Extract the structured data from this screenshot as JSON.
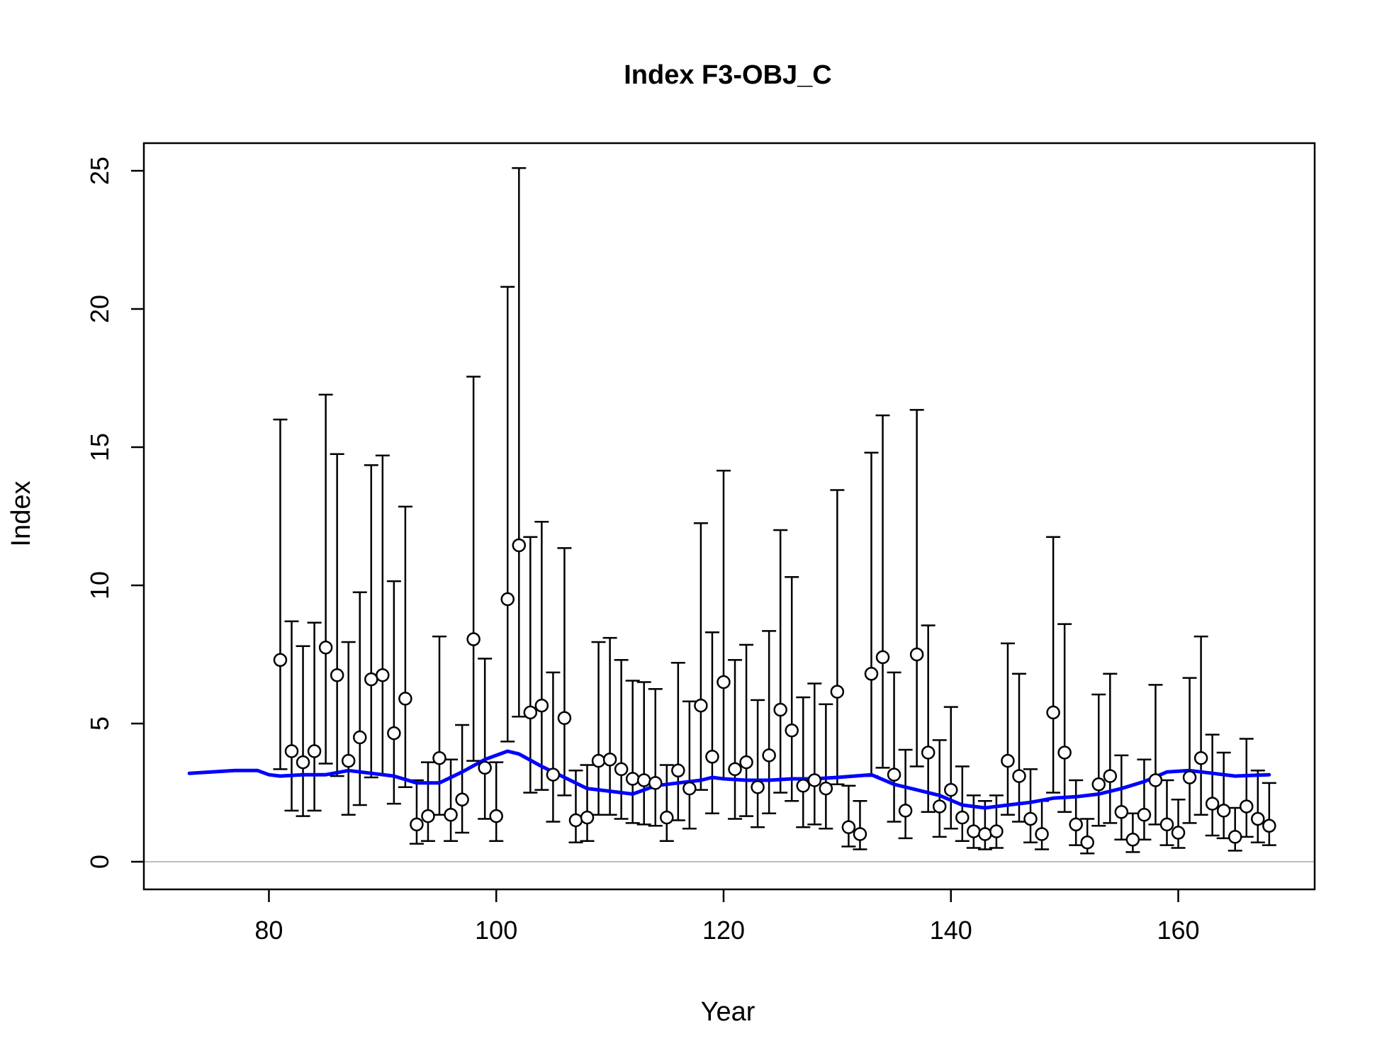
{
  "chart_data": {
    "type": "scatter",
    "title": "Index F3-OBJ_C",
    "xlabel": "Year",
    "ylabel": "Index",
    "xlim": [
      69,
      172
    ],
    "ylim": [
      -1,
      26
    ],
    "xticks": [
      80,
      100,
      120,
      140,
      160
    ],
    "yticks": [
      0,
      5,
      10,
      15,
      20,
      25
    ],
    "grid": false,
    "legend": "none",
    "zero_line": 0,
    "colors": {
      "points": "#000000",
      "point_fill": "#ffffff",
      "errorbars": "#000000",
      "smoother": "#0000ff",
      "zero_line": "#bebebe"
    },
    "observations": {
      "x": [
        81,
        82,
        83,
        84,
        85,
        86,
        87,
        88,
        89,
        90,
        91,
        92,
        93,
        94,
        95,
        96,
        97,
        98,
        99,
        100,
        101,
        102,
        103,
        104,
        105,
        106,
        107,
        108,
        109,
        110,
        111,
        112,
        113,
        114,
        115,
        116,
        117,
        118,
        119,
        120,
        121,
        122,
        123,
        124,
        125,
        126,
        127,
        128,
        129,
        130,
        131,
        132,
        133,
        134,
        135,
        136,
        137,
        138,
        139,
        140,
        141,
        142,
        143,
        144,
        145,
        146,
        147,
        148,
        149,
        150,
        151,
        152,
        153,
        154,
        155,
        156,
        157,
        158,
        159,
        160,
        161,
        162,
        163,
        164,
        165,
        166,
        167,
        168
      ],
      "y": [
        7.3,
        4.0,
        3.6,
        4.0,
        7.75,
        6.75,
        3.65,
        4.5,
        6.6,
        6.75,
        4.65,
        5.9,
        1.35,
        1.65,
        3.75,
        1.7,
        2.25,
        8.05,
        3.4,
        1.65,
        9.5,
        11.45,
        5.4,
        5.65,
        3.15,
        5.2,
        1.5,
        1.6,
        3.65,
        3.7,
        3.35,
        3.0,
        2.95,
        2.85,
        1.6,
        3.3,
        2.65,
        5.65,
        3.8,
        6.5,
        3.35,
        3.6,
        2.7,
        3.85,
        5.5,
        4.75,
        2.75,
        2.95,
        2.65,
        6.15,
        1.25,
        1.0,
        6.8,
        7.4,
        3.15,
        1.85,
        7.5,
        3.95,
        2.0,
        2.6,
        1.6,
        1.1,
        1.0,
        1.1,
        3.65,
        3.1,
        1.55,
        1.0,
        5.4,
        3.95,
        1.35,
        0.7,
        2.8,
        3.1,
        1.8,
        0.8,
        1.7,
        2.95,
        1.35,
        1.05,
        3.05,
        3.75,
        2.1,
        1.85,
        0.9,
        2.0,
        1.55,
        1.3
      ],
      "lower": [
        3.35,
        1.85,
        1.65,
        1.85,
        3.55,
        3.1,
        1.7,
        2.05,
        3.05,
        3.15,
        2.1,
        2.7,
        0.65,
        0.75,
        1.7,
        0.75,
        1.05,
        3.65,
        1.55,
        0.75,
        4.35,
        5.25,
        2.5,
        2.6,
        1.45,
        2.4,
        0.7,
        0.75,
        1.7,
        1.7,
        1.55,
        1.4,
        1.35,
        1.3,
        0.75,
        1.5,
        1.2,
        2.6,
        1.75,
        3.0,
        1.55,
        1.65,
        1.25,
        1.75,
        2.5,
        2.2,
        1.25,
        1.35,
        1.2,
        2.8,
        0.55,
        0.45,
        3.1,
        3.4,
        1.45,
        0.85,
        3.45,
        1.8,
        0.9,
        1.2,
        0.75,
        0.5,
        0.45,
        0.5,
        1.7,
        1.45,
        0.7,
        0.45,
        2.5,
        1.8,
        0.6,
        0.3,
        1.3,
        1.4,
        0.8,
        0.35,
        0.8,
        1.35,
        0.6,
        0.5,
        1.4,
        1.7,
        0.95,
        0.85,
        0.4,
        0.9,
        0.7,
        0.6
      ],
      "upper": [
        16.0,
        8.7,
        7.8,
        8.65,
        16.9,
        14.75,
        7.95,
        9.75,
        14.35,
        14.7,
        10.15,
        12.85,
        2.95,
        3.6,
        8.15,
        3.7,
        4.95,
        17.55,
        7.35,
        3.6,
        20.8,
        25.1,
        11.75,
        12.3,
        6.85,
        11.35,
        3.3,
        3.5,
        7.95,
        8.1,
        7.3,
        6.55,
        6.5,
        6.25,
        3.5,
        7.2,
        5.8,
        12.25,
        8.3,
        14.15,
        7.3,
        7.85,
        5.85,
        8.35,
        12.0,
        10.3,
        5.95,
        6.45,
        5.7,
        13.45,
        2.75,
        2.2,
        14.8,
        16.15,
        6.85,
        4.05,
        16.35,
        8.55,
        4.4,
        5.6,
        3.45,
        2.4,
        2.2,
        2.4,
        7.9,
        6.8,
        3.35,
        2.2,
        11.75,
        8.6,
        2.95,
        1.55,
        6.05,
        6.8,
        3.85,
        1.75,
        3.7,
        6.4,
        2.95,
        2.25,
        6.65,
        8.15,
        4.6,
        3.95,
        1.95,
        4.45,
        3.3,
        2.85
      ]
    },
    "smoother": {
      "x": [
        73,
        75,
        77,
        79,
        80,
        81,
        83,
        85,
        87,
        89,
        91,
        93,
        95,
        97,
        99,
        101,
        102,
        104,
        106,
        108,
        110,
        112,
        114,
        116,
        118,
        119,
        120,
        122,
        124,
        126,
        128,
        130,
        133,
        135,
        137,
        139,
        141,
        143,
        145,
        147,
        149,
        151,
        153,
        155,
        157,
        159,
        161,
        163,
        165,
        168
      ],
      "y": [
        3.2,
        3.25,
        3.3,
        3.3,
        3.15,
        3.1,
        3.15,
        3.15,
        3.3,
        3.2,
        3.1,
        2.85,
        2.85,
        3.25,
        3.7,
        4.0,
        3.9,
        3.45,
        3.05,
        2.65,
        2.55,
        2.45,
        2.75,
        2.85,
        2.95,
        3.05,
        3.0,
        2.95,
        2.95,
        3.0,
        3.0,
        3.05,
        3.15,
        2.8,
        2.6,
        2.4,
        2.05,
        1.95,
        2.05,
        2.15,
        2.3,
        2.35,
        2.45,
        2.65,
        2.9,
        3.25,
        3.3,
        3.2,
        3.1,
        3.15
      ]
    }
  }
}
